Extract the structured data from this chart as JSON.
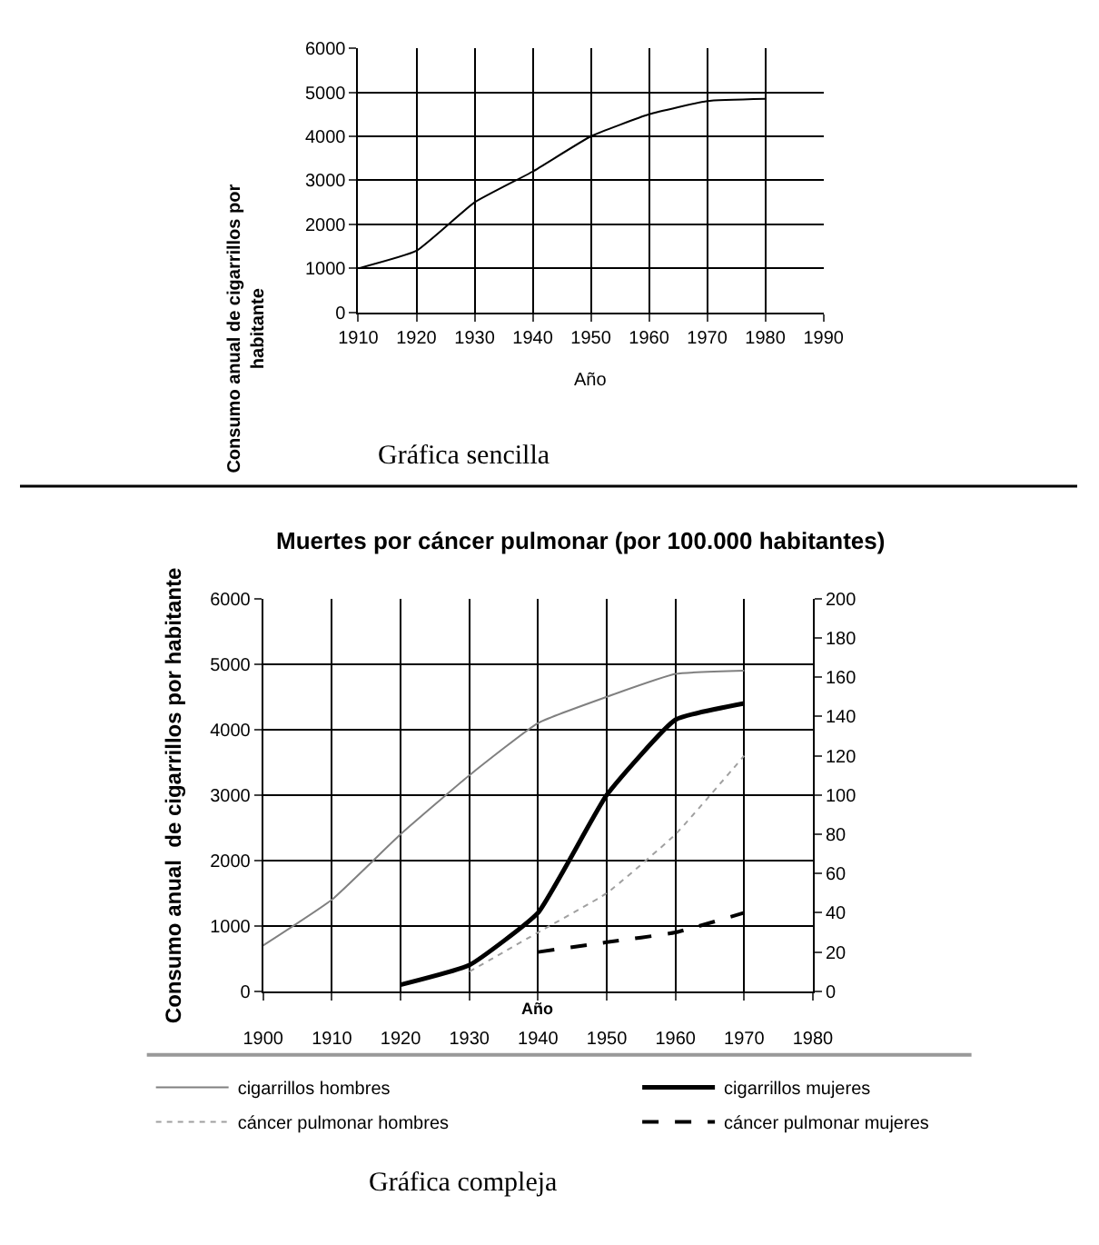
{
  "chart_data": [
    {
      "type": "line",
      "x": [
        1910,
        1920,
        1930,
        1940,
        1950,
        1960,
        1970,
        1980
      ],
      "xlabel": "Año",
      "ylabel": "Consumo anual de cigarrillos por habitante",
      "series": [
        {
          "color": "#000000",
          "values": [
            1000,
            1400,
            2500,
            3200,
            4000,
            4500,
            4800,
            4850
          ]
        }
      ],
      "xlim": [
        1910,
        1990
      ],
      "xticks": [
        1910,
        1920,
        1930,
        1940,
        1950,
        1960,
        1970,
        1980,
        1990
      ],
      "ylim": [
        0,
        6000
      ],
      "yticks": [
        0,
        1000,
        2000,
        3000,
        4000,
        5000,
        6000
      ],
      "grid": true,
      "legend": false,
      "marker": "none",
      "annotations": [
        "Gráfica sencilla"
      ]
    },
    {
      "type": "line",
      "title": "Muertes por cáncer pulmonar (por 100.000 habitantes)",
      "xlabel": "Año",
      "ylabel": "Consumo anual  de cigarrillos por habitante",
      "series": [
        {
          "name": "cigarrillos hombres",
          "color": "#808080",
          "line_style": "solid",
          "x": [
            1900,
            1910,
            1920,
            1930,
            1940,
            1950,
            1960,
            1970
          ],
          "values": [
            700,
            1400,
            2400,
            3300,
            4100,
            4500,
            4850,
            4900
          ]
        },
        {
          "name": "cigarrillos mujeres",
          "color": "#000000",
          "line_style": "solid",
          "x": [
            1920,
            1930,
            1940,
            1950,
            1960,
            1970
          ],
          "values": [
            100,
            400,
            1200,
            3000,
            4150,
            4400
          ]
        },
        {
          "name": "cáncer pulmonar hombres",
          "color": "#a0a0a0",
          "line_style": "dotted",
          "axis": "y2",
          "x": [
            1930,
            1940,
            1950,
            1960,
            1970
          ],
          "values": [
            10,
            30,
            50,
            80,
            120
          ]
        },
        {
          "name": "cáncer pulmonar mujeres",
          "color": "#000000",
          "line_style": "dashed",
          "axis": "y2",
          "x": [
            1940,
            1950,
            1960,
            1970
          ],
          "values": [
            20,
            25,
            30,
            40
          ]
        }
      ],
      "xlim": [
        1900,
        1980
      ],
      "xticks": [
        1900,
        1910,
        1920,
        1930,
        1940,
        1950,
        1960,
        1970,
        1980
      ],
      "ylim": [
        0,
        6000
      ],
      "yticks": [
        0,
        1000,
        2000,
        3000,
        4000,
        5000,
        6000
      ],
      "y2lim": [
        0,
        200
      ],
      "y2ticks": [
        0,
        20,
        40,
        60,
        80,
        100,
        120,
        140,
        160,
        180,
        200
      ],
      "grid": true,
      "legend": "bottom",
      "marker": "none",
      "annotations": [
        "Gráfica compleja"
      ]
    }
  ]
}
